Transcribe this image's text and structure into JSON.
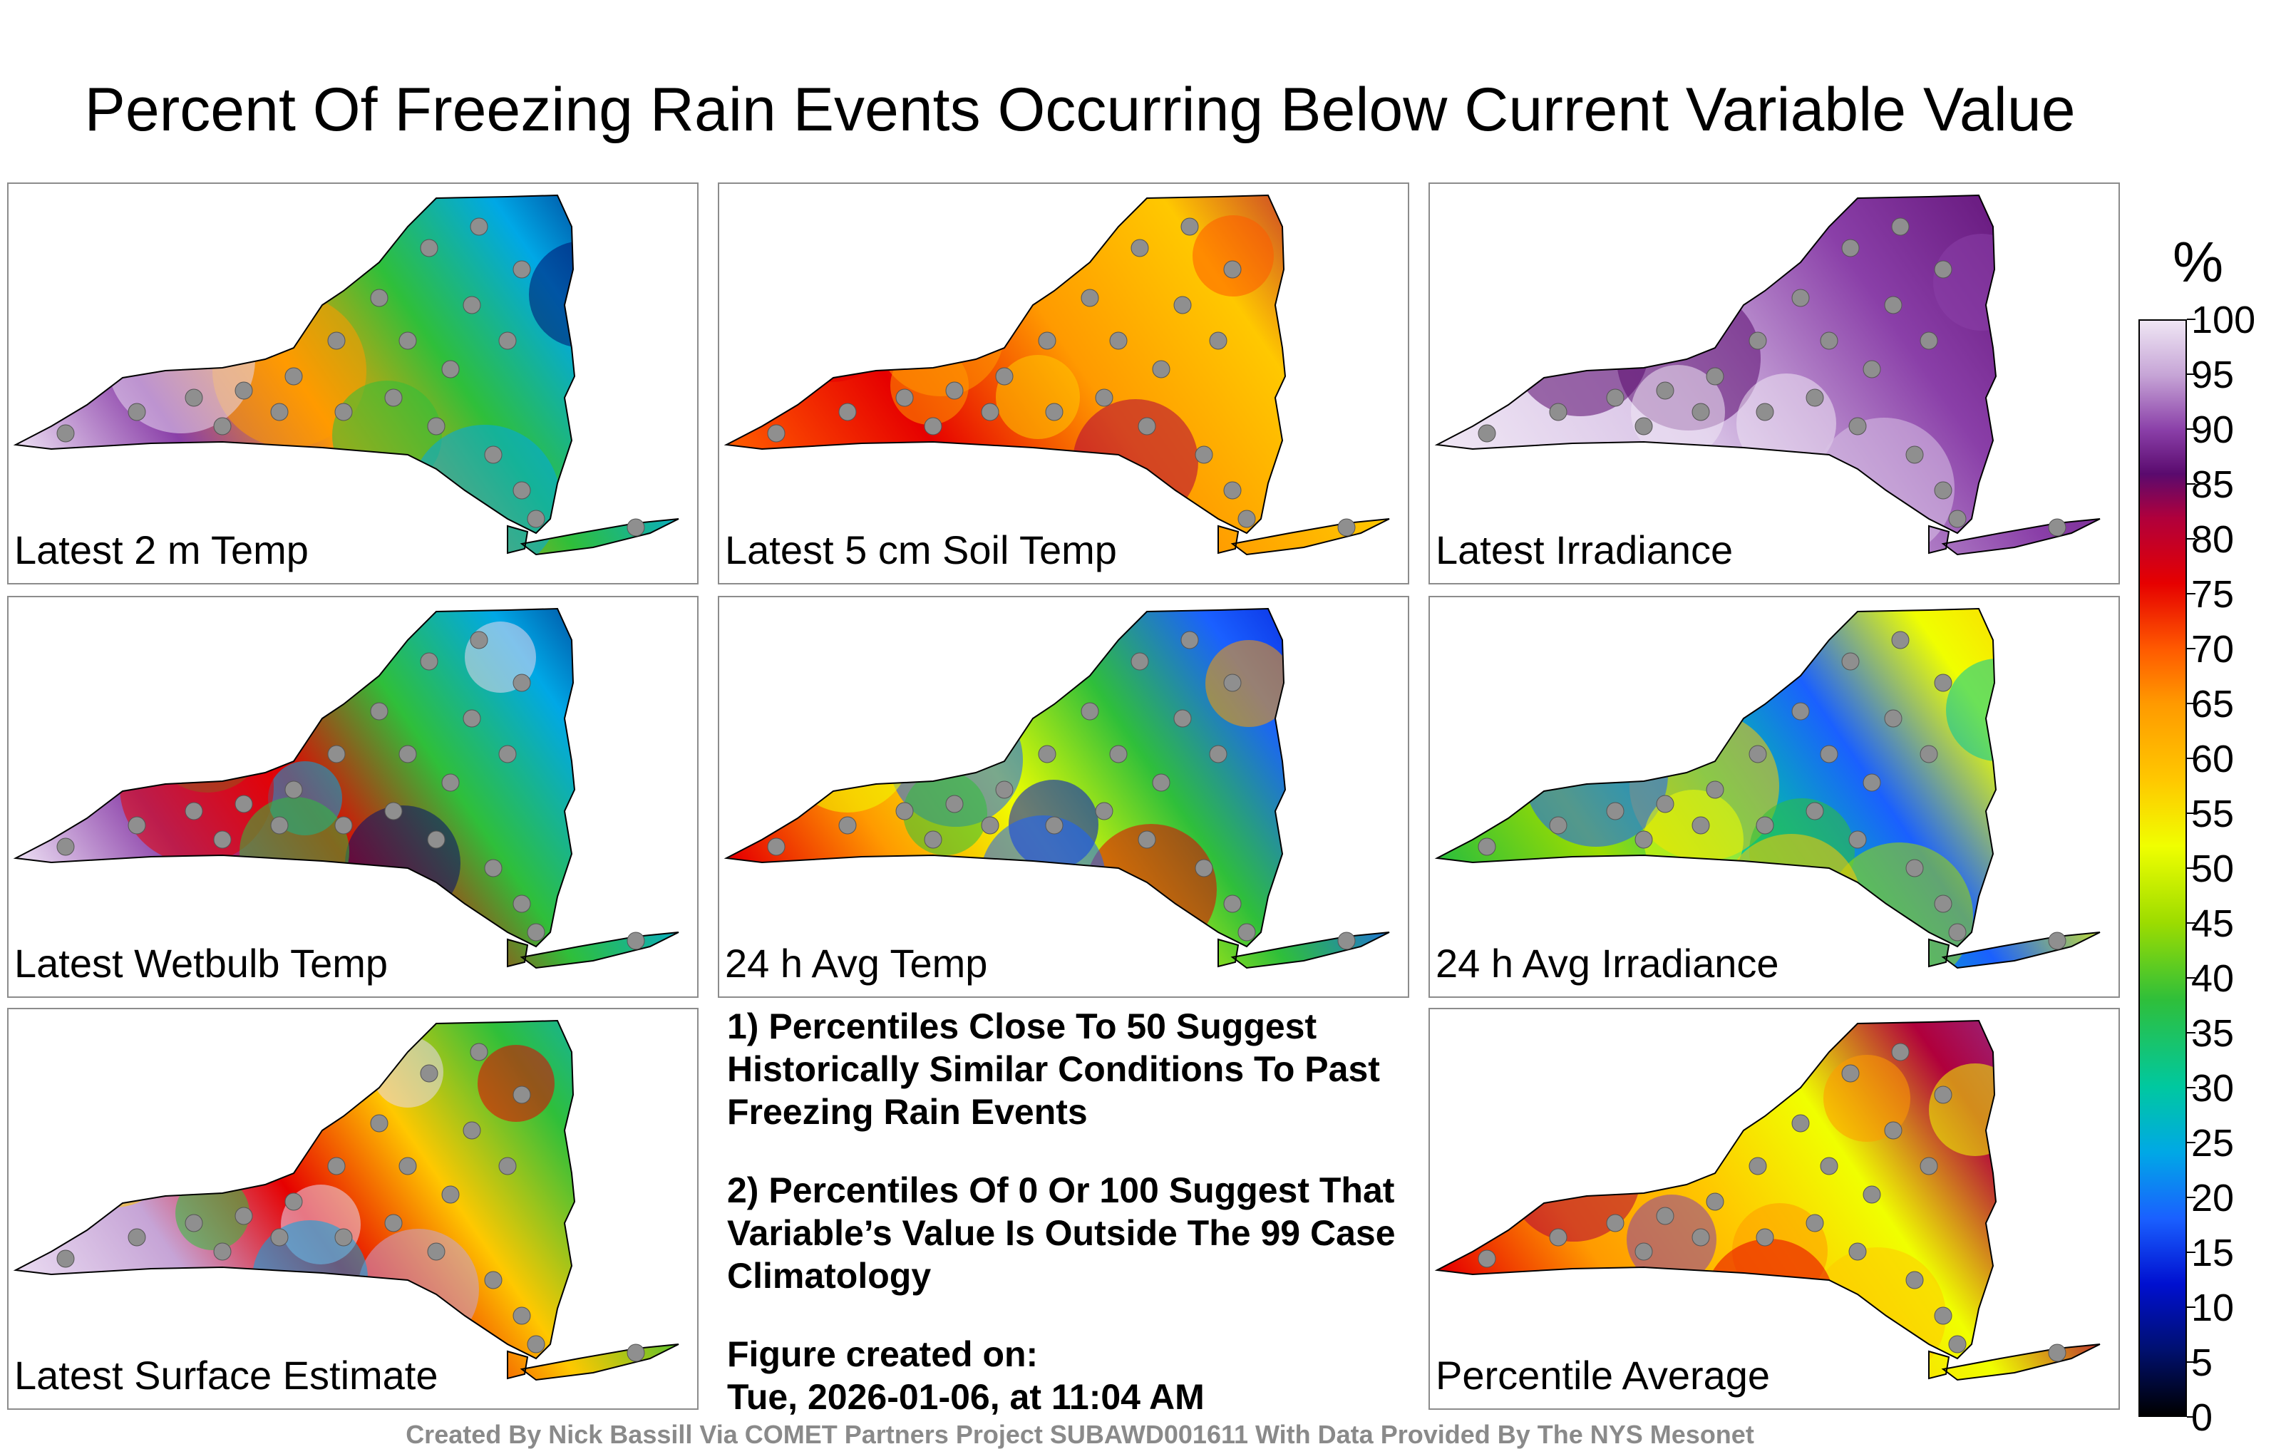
{
  "title": "Percent Of Freezing Rain Events Occurring Below Current Variable Value",
  "panels": [
    {
      "label": "Latest 2 m Temp",
      "palette": [
        "#e8d8f0",
        "#8a3fa8",
        "#ff9a00",
        "#2fbf3a",
        "#00a8e6",
        "#001070"
      ]
    },
    {
      "label": "Latest 5 cm Soil Temp",
      "palette": [
        "#ff5a00",
        "#e60000",
        "#ff9a00",
        "#ffc800",
        "#b0003c"
      ]
    },
    {
      "label": "Latest Irradiance",
      "palette": [
        "#efe6f4",
        "#d8c2e6",
        "#8a3fa8",
        "#5a0a6e"
      ]
    },
    {
      "label": "Latest Wetbulb Temp",
      "palette": [
        "#e8d8f0",
        "#8a3fa8",
        "#e60000",
        "#2fbf3a",
        "#00a8e6",
        "#001070"
      ]
    },
    {
      "label": "24 h Avg Temp",
      "palette": [
        "#e60000",
        "#ff9a00",
        "#f0ff00",
        "#2fbf3a",
        "#1a60ff",
        "#0010d0"
      ]
    },
    {
      "label": "24 h Avg Irradiance",
      "palette": [
        "#2fbf3a",
        "#9cdc00",
        "#00c8a0",
        "#1a60ff",
        "#f0ff00",
        "#ffc800"
      ]
    },
    {
      "label": "Latest Surface Estimate",
      "palette": [
        "#e8d8f0",
        "#c6a4d6",
        "#e60000",
        "#ffc800",
        "#2fbf3a",
        "#00a8e6"
      ]
    },
    {
      "label": "Percentile Average",
      "palette": [
        "#e60000",
        "#ff9a00",
        "#ffc800",
        "#f0ff00",
        "#b0003c",
        "#8a3fa8"
      ]
    }
  ],
  "notes": {
    "note1": "1) Percentiles Close To 50 Suggest Historically Similar Conditions To Past Freezing Rain Events",
    "note2": "2) Percentiles Of 0 Or 100 Suggest That Variable’s Value Is Outside The 99 Case Climatology",
    "created_label": "Figure created on:",
    "created_value": "Tue, 2026-01-06, at 11:04 AM"
  },
  "colorbar": {
    "unit": "%",
    "ticks": [
      "100",
      "95",
      "90",
      "85",
      "80",
      "75",
      "70",
      "65",
      "60",
      "55",
      "50",
      "45",
      "40",
      "35",
      "30",
      "25",
      "20",
      "15",
      "10",
      "5",
      "0"
    ]
  },
  "footer": "Created By Nick Bassill Via COMET Partners Project SUBAWD001611 With Data Provided By The NYS Mesonet"
}
